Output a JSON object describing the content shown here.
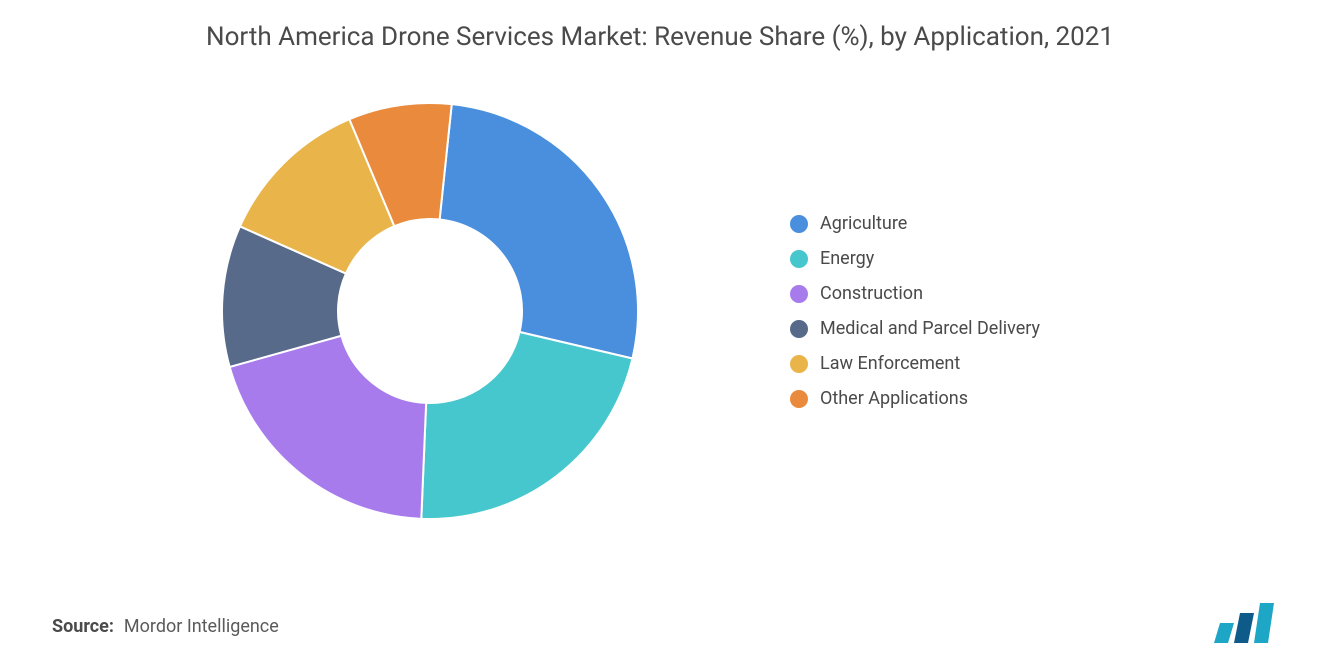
{
  "chart": {
    "type": "donut",
    "title": "North America Drone Services Market: Revenue Share (%), by Application, 2021",
    "title_fontsize": 26,
    "title_color": "#4a4a4a",
    "background_color": "#ffffff",
    "donut": {
      "outer_radius": 208,
      "inner_radius": 92,
      "start_angle_deg": -90,
      "gap_color": "#ffffff",
      "gap_width": 2
    },
    "series": [
      {
        "label": "Agriculture",
        "value": 27,
        "color": "#4a8fdd"
      },
      {
        "label": "Energy",
        "value": 22,
        "color": "#45c7cd"
      },
      {
        "label": "Construction",
        "value": 20,
        "color": "#a87bed"
      },
      {
        "label": "Medical and Parcel Delivery",
        "value": 11,
        "color": "#576a8a"
      },
      {
        "label": "Law Enforcement",
        "value": 12,
        "color": "#e9b54a"
      },
      {
        "label": "Other Applications",
        "value": 8,
        "color": "#ea8a3c"
      }
    ],
    "legend": {
      "position": "right",
      "marker_shape": "circle",
      "marker_size": 18,
      "fontsize": 18,
      "text_color": "#4a4a4a",
      "row_gap": 14
    }
  },
  "source": {
    "label": "Source:",
    "value": "Mordor Intelligence",
    "label_fontsize": 18,
    "value_fontsize": 18,
    "label_weight": 700,
    "label_color": "#4a4a4a",
    "value_color": "#5a5a5a"
  },
  "brand": {
    "name": "Mordor Intelligence logo",
    "bar_colors": [
      "#1ea6c6",
      "#0e5b8a",
      "#1ea6c6"
    ]
  }
}
